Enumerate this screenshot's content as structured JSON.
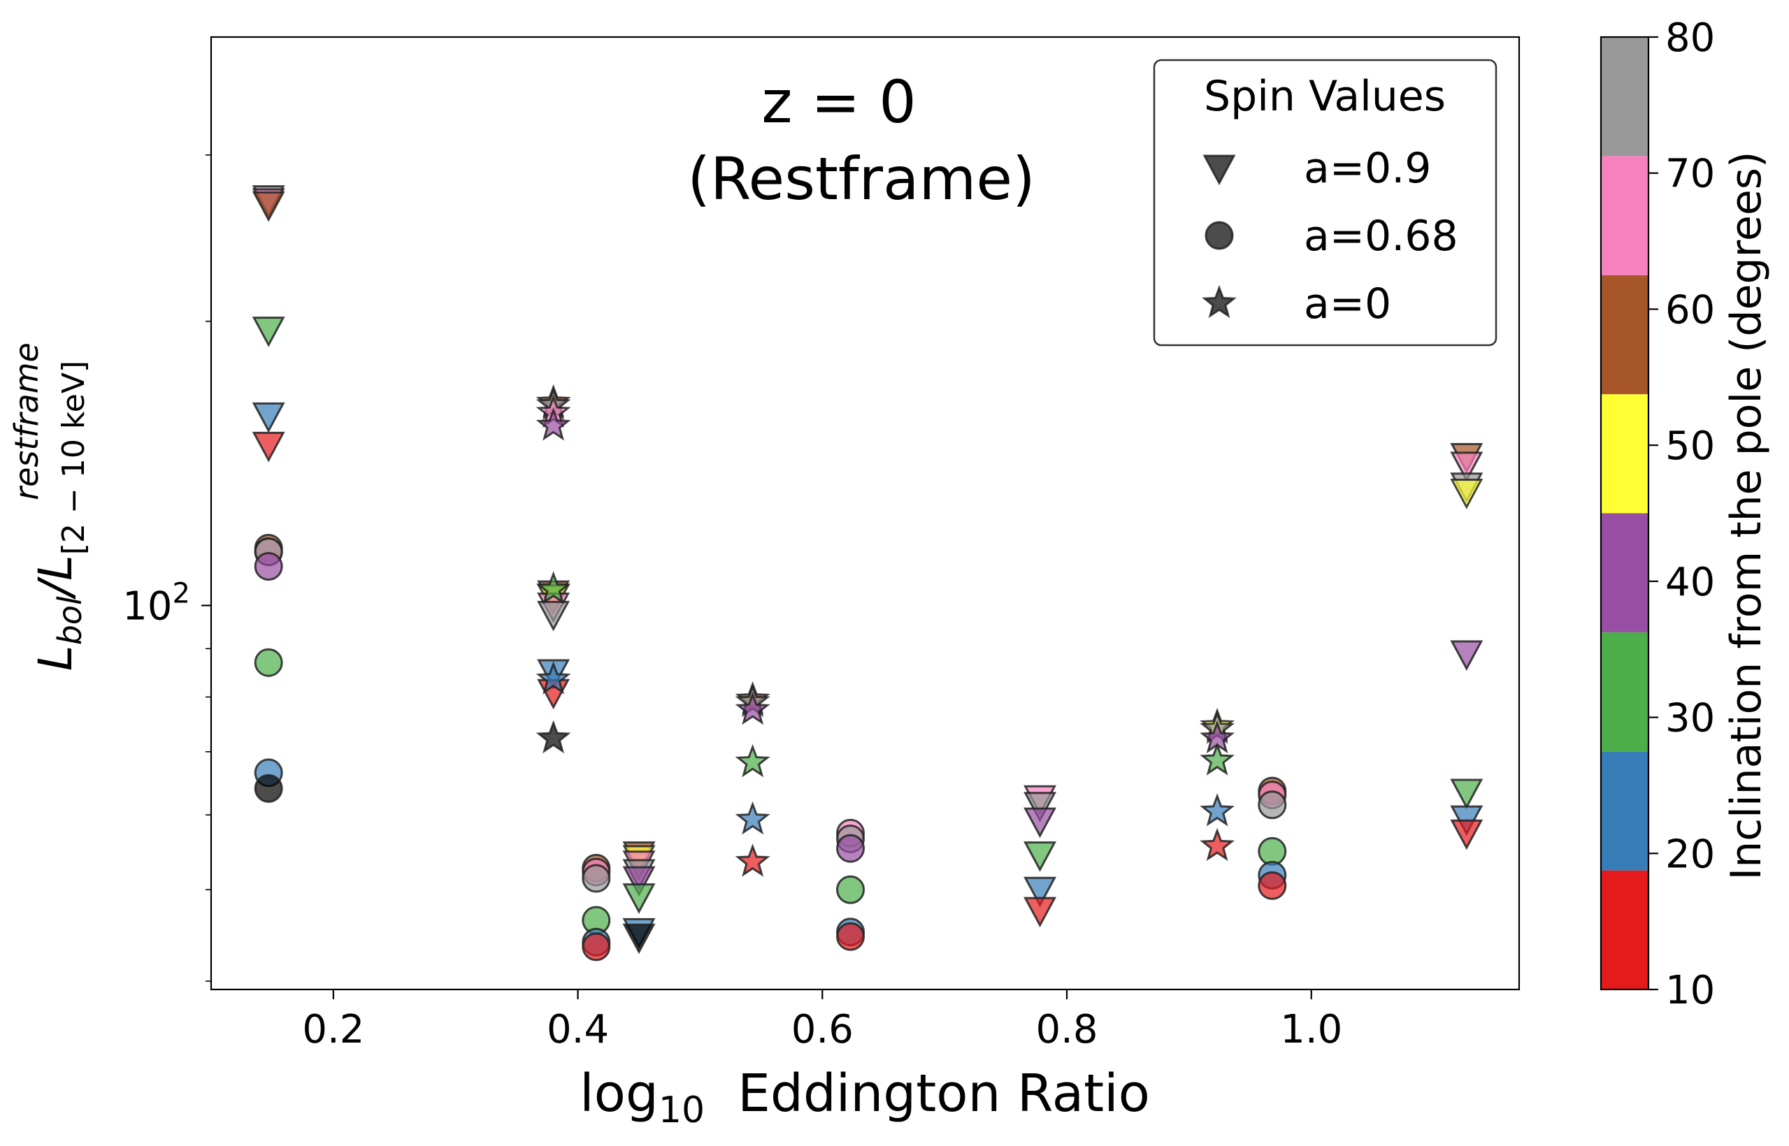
{
  "chart_data": {
    "type": "scatter",
    "title_line1": "z = 0",
    "title_line2": "(Restframe)",
    "xlabel": {
      "base": "log",
      "sub": "10",
      "rest": "  Eddington Ratio"
    },
    "ylabel": {
      "num": "L",
      "num_sub": "bol",
      "slash": "/",
      "den": "L",
      "den_sub": "[2 − 10 keV]",
      "den_sup": "restframe"
    },
    "x_scale": "linear",
    "y_scale": "log",
    "xlim": [
      0.1,
      1.17
    ],
    "ylim": [
      39.2,
      400
    ],
    "x_ticks": [
      0.2,
      0.4,
      0.6,
      0.8,
      1.0
    ],
    "x_tick_labels": [
      "0.2",
      "0.4",
      "0.6",
      "0.8",
      "1.0"
    ],
    "y_major_ticks": [
      100
    ],
    "y_major_tick_label_base": "10",
    "y_major_tick_label_exp": "2",
    "y_minor_ticks": [
      40,
      50,
      60,
      70,
      80,
      90,
      200,
      300
    ],
    "grid": false,
    "legend": {
      "title": "Spin Values",
      "position": "top-right",
      "entries": [
        {
          "label": "a=0.9",
          "marker": "triangle-down"
        },
        {
          "label": "a=0.68",
          "marker": "circle"
        },
        {
          "label": "a=0",
          "marker": "star"
        }
      ]
    },
    "colorbar": {
      "label": "Inclination from the pole (degrees)",
      "range": [
        10,
        80
      ],
      "tick_values": [
        10,
        20,
        30,
        40,
        50,
        60,
        70,
        80
      ],
      "tick_labels": [
        "10",
        "20",
        "30",
        "40",
        "50",
        "60",
        "70",
        "80"
      ],
      "bins": [
        {
          "from": 10,
          "to": 18.75,
          "color": "#e41a1c"
        },
        {
          "from": 18.75,
          "to": 27.5,
          "color": "#377eb8"
        },
        {
          "from": 27.5,
          "to": 36.25,
          "color": "#4daf4a"
        },
        {
          "from": 36.25,
          "to": 45,
          "color": "#984ea3"
        },
        {
          "from": 45,
          "to": 53.75,
          "color": "#ffff33"
        },
        {
          "from": 53.75,
          "to": 62.5,
          "color": "#a65628"
        },
        {
          "from": 62.5,
          "to": 71.25,
          "color": "#f781bf"
        },
        {
          "from": 71.25,
          "to": 80,
          "color": "#999999"
        }
      ]
    },
    "series": [
      {
        "name": "a=0.9",
        "marker": "triangle-down",
        "points": [
          {
            "x": 0.147,
            "y": 270,
            "color": "#999999"
          },
          {
            "x": 0.147,
            "y": 268,
            "color": "#f781bf"
          },
          {
            "x": 0.147,
            "y": 266,
            "color": "#a65628"
          },
          {
            "x": 0.147,
            "y": 196,
            "color": "#4daf4a"
          },
          {
            "x": 0.147,
            "y": 159,
            "color": "#377eb8"
          },
          {
            "x": 0.147,
            "y": 148,
            "color": "#e41a1c"
          },
          {
            "x": 0.38,
            "y": 103,
            "color": "#a65628"
          },
          {
            "x": 0.38,
            "y": 102,
            "color": "#ffff33"
          },
          {
            "x": 0.38,
            "y": 100,
            "color": "#f781bf"
          },
          {
            "x": 0.38,
            "y": 98,
            "color": "#999999"
          },
          {
            "x": 0.38,
            "y": 85,
            "color": "#377eb8"
          },
          {
            "x": 0.38,
            "y": 81,
            "color": "#e41a1c"
          },
          {
            "x": 0.45,
            "y": 54.5,
            "color": "#a65628"
          },
          {
            "x": 0.45,
            "y": 54.0,
            "color": "#ffff33"
          },
          {
            "x": 0.45,
            "y": 53.3,
            "color": "#f781bf"
          },
          {
            "x": 0.45,
            "y": 52.2,
            "color": "#999999"
          },
          {
            "x": 0.45,
            "y": 51.3,
            "color": "#984ea3"
          },
          {
            "x": 0.45,
            "y": 49.2,
            "color": "#4daf4a"
          },
          {
            "x": 0.45,
            "y": 45.2,
            "color": "#377eb8"
          },
          {
            "x": 0.45,
            "y": 44.6,
            "color": "#000000"
          },
          {
            "x": 0.778,
            "y": 62.5,
            "color": "#f781bf"
          },
          {
            "x": 0.778,
            "y": 61.5,
            "color": "#999999"
          },
          {
            "x": 0.778,
            "y": 59.2,
            "color": "#984ea3"
          },
          {
            "x": 0.778,
            "y": 54.5,
            "color": "#4daf4a"
          },
          {
            "x": 0.778,
            "y": 50.0,
            "color": "#377eb8"
          },
          {
            "x": 0.778,
            "y": 47.6,
            "color": "#e41a1c"
          },
          {
            "x": 1.127,
            "y": 144,
            "color": "#a65628"
          },
          {
            "x": 1.127,
            "y": 141,
            "color": "#f781bf"
          },
          {
            "x": 1.127,
            "y": 134,
            "color": "#999999"
          },
          {
            "x": 1.127,
            "y": 132,
            "color": "#ffff33"
          },
          {
            "x": 1.127,
            "y": 89,
            "color": "#984ea3"
          },
          {
            "x": 1.127,
            "y": 63.5,
            "color": "#4daf4a"
          },
          {
            "x": 1.127,
            "y": 59.5,
            "color": "#377eb8"
          },
          {
            "x": 1.127,
            "y": 57.5,
            "color": "#e41a1c"
          }
        ]
      },
      {
        "name": "a=0.68",
        "marker": "circle",
        "points": [
          {
            "x": 0.147,
            "y": 115,
            "color": "#a65628"
          },
          {
            "x": 0.147,
            "y": 114,
            "color": "#f781bf"
          },
          {
            "x": 0.147,
            "y": 114,
            "color": "#999999"
          },
          {
            "x": 0.147,
            "y": 110,
            "color": "#984ea3"
          },
          {
            "x": 0.147,
            "y": 87,
            "color": "#4daf4a"
          },
          {
            "x": 0.147,
            "y": 66.5,
            "color": "#377eb8"
          },
          {
            "x": 0.147,
            "y": 64.0,
            "color": "#000000"
          },
          {
            "x": 0.415,
            "y": 52.7,
            "color": "#a65628"
          },
          {
            "x": 0.415,
            "y": 52.2,
            "color": "#f781bf"
          },
          {
            "x": 0.415,
            "y": 51.4,
            "color": "#999999"
          },
          {
            "x": 0.415,
            "y": 46.4,
            "color": "#4daf4a"
          },
          {
            "x": 0.415,
            "y": 44.0,
            "color": "#377eb8"
          },
          {
            "x": 0.415,
            "y": 43.5,
            "color": "#e41a1c"
          },
          {
            "x": 0.623,
            "y": 57.4,
            "color": "#f781bf"
          },
          {
            "x": 0.623,
            "y": 56.6,
            "color": "#999999"
          },
          {
            "x": 0.623,
            "y": 55.3,
            "color": "#984ea3"
          },
          {
            "x": 0.623,
            "y": 50.0,
            "color": "#4daf4a"
          },
          {
            "x": 0.623,
            "y": 45.1,
            "color": "#377eb8"
          },
          {
            "x": 0.623,
            "y": 44.6,
            "color": "#e41a1c"
          },
          {
            "x": 0.968,
            "y": 63.6,
            "color": "#a65628"
          },
          {
            "x": 0.968,
            "y": 63.0,
            "color": "#f781bf"
          },
          {
            "x": 0.968,
            "y": 61.5,
            "color": "#999999"
          },
          {
            "x": 0.968,
            "y": 54.9,
            "color": "#4daf4a"
          },
          {
            "x": 0.968,
            "y": 51.8,
            "color": "#377eb8"
          },
          {
            "x": 0.968,
            "y": 50.5,
            "color": "#e41a1c"
          }
        ]
      },
      {
        "name": "a=0",
        "marker": "star",
        "points": [
          {
            "x": 0.38,
            "y": 164,
            "color": "#a65628"
          },
          {
            "x": 0.38,
            "y": 163,
            "color": "#999999"
          },
          {
            "x": 0.38,
            "y": 160,
            "color": "#f781bf"
          },
          {
            "x": 0.38,
            "y": 155,
            "color": "#984ea3"
          },
          {
            "x": 0.38,
            "y": 104,
            "color": "#4daf4a"
          },
          {
            "x": 0.38,
            "y": 83.5,
            "color": "#377eb8"
          },
          {
            "x": 0.38,
            "y": 72.3,
            "color": "#000000"
          },
          {
            "x": 0.543,
            "y": 79.5,
            "color": "#a65628"
          },
          {
            "x": 0.543,
            "y": 79.0,
            "color": "#999999"
          },
          {
            "x": 0.543,
            "y": 77.5,
            "color": "#984ea3"
          },
          {
            "x": 0.543,
            "y": 68.2,
            "color": "#4daf4a"
          },
          {
            "x": 0.543,
            "y": 59.3,
            "color": "#377eb8"
          },
          {
            "x": 0.543,
            "y": 53.5,
            "color": "#e41a1c"
          },
          {
            "x": 0.923,
            "y": 74.5,
            "color": "#ffff33"
          },
          {
            "x": 0.923,
            "y": 74.0,
            "color": "#999999"
          },
          {
            "x": 0.923,
            "y": 72.3,
            "color": "#984ea3"
          },
          {
            "x": 0.923,
            "y": 68.5,
            "color": "#4daf4a"
          },
          {
            "x": 0.923,
            "y": 60.5,
            "color": "#377eb8"
          },
          {
            "x": 0.923,
            "y": 55.6,
            "color": "#e41a1c"
          }
        ]
      }
    ]
  }
}
